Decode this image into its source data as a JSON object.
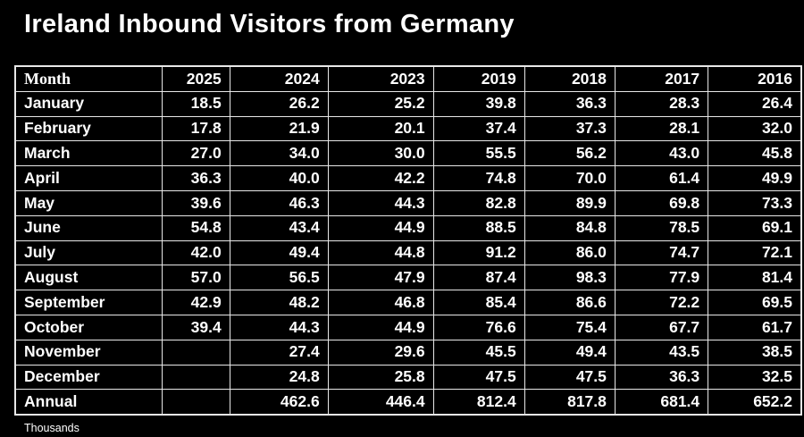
{
  "chart_data": {
    "type": "table",
    "title": "Ireland Inbound Visitors from Germany",
    "footnote": "Thousands",
    "units": "Thousands",
    "columns": [
      "Month",
      "2025",
      "2024",
      "2023",
      "2019",
      "2018",
      "2017",
      "2016"
    ],
    "rows": [
      [
        "January",
        "18.5",
        "26.2",
        "25.2",
        "39.8",
        "36.3",
        "28.3",
        "26.4"
      ],
      [
        "February",
        "17.8",
        "21.9",
        "20.1",
        "37.4",
        "37.3",
        "28.1",
        "32.0"
      ],
      [
        "March",
        "27.0",
        "34.0",
        "30.0",
        "55.5",
        "56.2",
        "43.0",
        "45.8"
      ],
      [
        "April",
        "36.3",
        "40.0",
        "42.2",
        "74.8",
        "70.0",
        "61.4",
        "49.9"
      ],
      [
        "May",
        "39.6",
        "46.3",
        "44.3",
        "82.8",
        "89.9",
        "69.8",
        "73.3"
      ],
      [
        "June",
        "54.8",
        "43.4",
        "44.9",
        "88.5",
        "84.8",
        "78.5",
        "69.1"
      ],
      [
        "July",
        "42.0",
        "49.4",
        "44.8",
        "91.2",
        "86.0",
        "74.7",
        "72.1"
      ],
      [
        "August",
        "57.0",
        "56.5",
        "47.9",
        "87.4",
        "98.3",
        "77.9",
        "81.4"
      ],
      [
        "September",
        "42.9",
        "48.2",
        "46.8",
        "85.4",
        "86.6",
        "72.2",
        "69.5"
      ],
      [
        "October",
        "39.4",
        "44.3",
        "44.9",
        "76.6",
        "75.4",
        "67.7",
        "61.7"
      ],
      [
        "November",
        "",
        "27.4",
        "29.6",
        "45.5",
        "49.4",
        "43.5",
        "38.5"
      ],
      [
        "December",
        "",
        "24.8",
        "25.8",
        "47.5",
        "47.5",
        "36.3",
        "32.5"
      ],
      [
        "Annual",
        "",
        "462.6",
        "446.4",
        "812.4",
        "817.8",
        "681.4",
        "652.2"
      ]
    ],
    "colors": {
      "background": "#000000",
      "text": "#ffffff",
      "border": "#e8e8e8"
    }
  }
}
